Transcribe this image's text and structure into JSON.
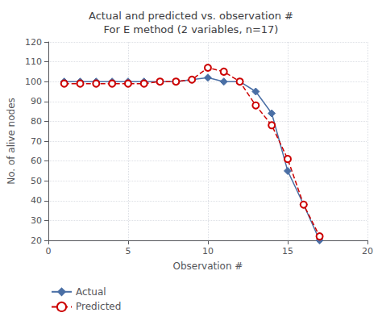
{
  "chart_data": {
    "type": "line",
    "title": "Actual and predicted vs. observation #\nFor E method (2 variables, n=17)",
    "xlabel": "Observation #",
    "ylabel": "No. of alive nodes",
    "xlim": [
      0,
      20
    ],
    "ylim": [
      20,
      120
    ],
    "xticks": [
      0,
      5,
      10,
      15,
      20
    ],
    "yticks": [
      20,
      30,
      40,
      50,
      60,
      70,
      80,
      90,
      100,
      110,
      120
    ],
    "grid": true,
    "legend": "lower left",
    "x": [
      1,
      2,
      3,
      4,
      5,
      6,
      7,
      8,
      9,
      10,
      11,
      12,
      13,
      14,
      15,
      16,
      17
    ],
    "series": [
      {
        "name": "Actual",
        "color": "#4a6fa5",
        "marker": "diamond",
        "line_style": "solid",
        "values": [
          100,
          100,
          100,
          100,
          100,
          100,
          100,
          100,
          101,
          102,
          100,
          100,
          95,
          84,
          55,
          38,
          20
        ]
      },
      {
        "name": "Predicted",
        "color": "#CC0000",
        "marker": "circle",
        "line_style": "dashed",
        "values": [
          99,
          99,
          99,
          99,
          99,
          99,
          100,
          100,
          101,
          107,
          105,
          100,
          88,
          78,
          61,
          38,
          22
        ]
      }
    ]
  }
}
